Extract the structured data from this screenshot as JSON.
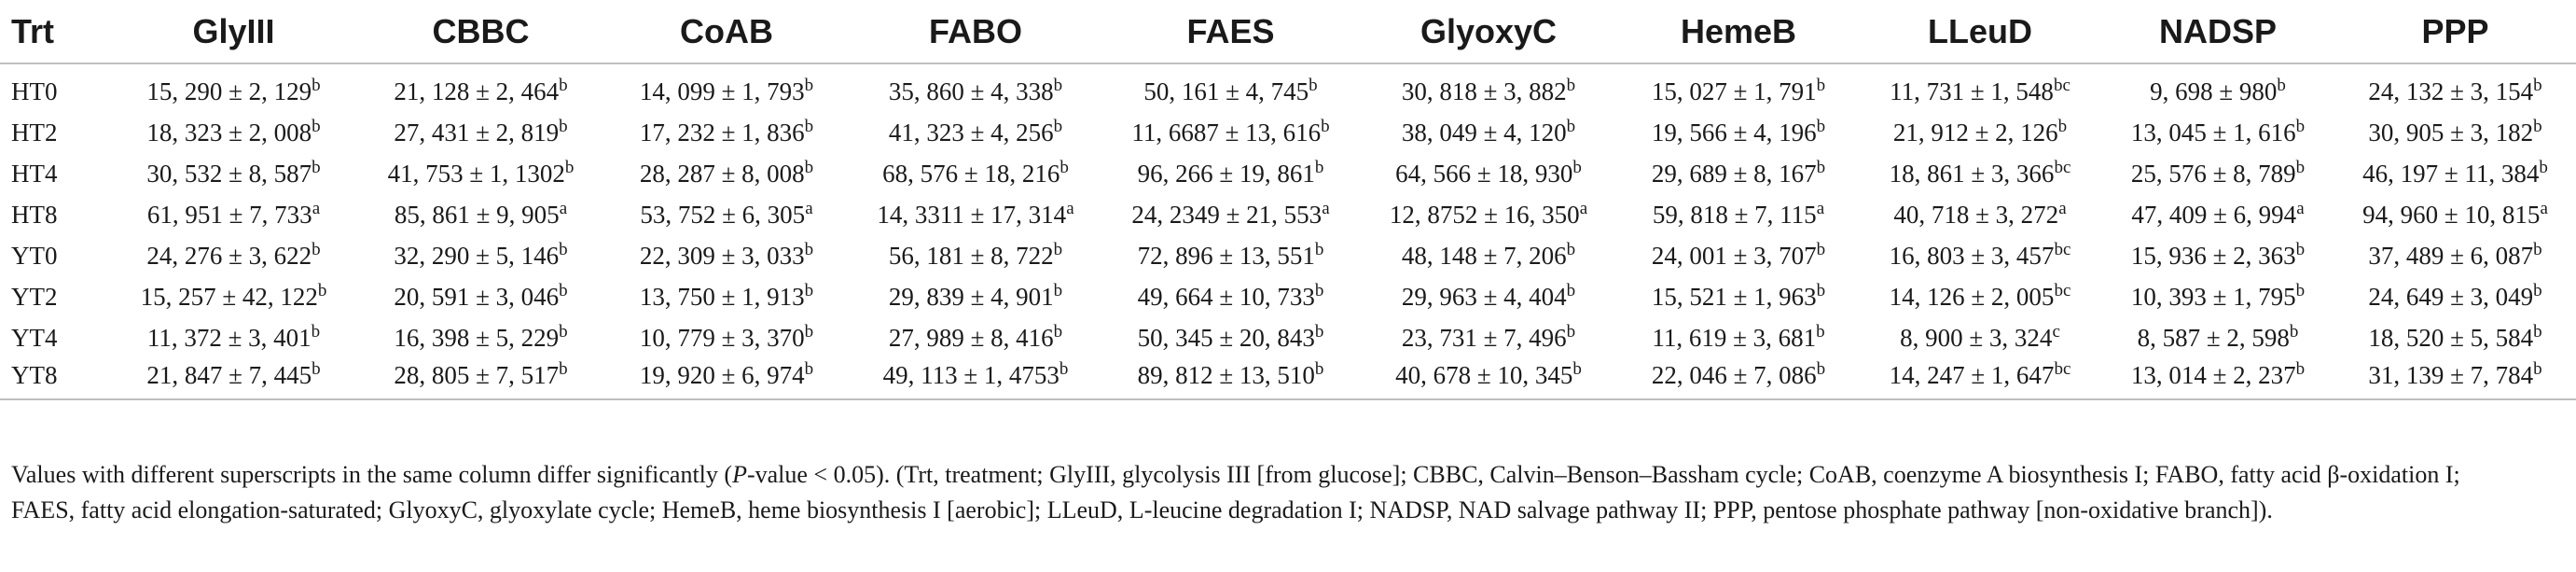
{
  "table": {
    "columns": [
      "Trt",
      "GlyIII",
      "CBBC",
      "CoAB",
      "FABO",
      "FAES",
      "GlyoxyC",
      "HemeB",
      "LLeuD",
      "NADSP",
      "PPP"
    ],
    "rows": [
      {
        "trt": "HT0",
        "cells": [
          {
            "v": "15, 290 ± 2, 129",
            "s": "b"
          },
          {
            "v": "21, 128 ± 2, 464",
            "s": "b"
          },
          {
            "v": "14, 099 ± 1, 793",
            "s": "b"
          },
          {
            "v": "35, 860 ± 4, 338",
            "s": "b"
          },
          {
            "v": "50, 161 ± 4, 745",
            "s": "b"
          },
          {
            "v": "30, 818 ± 3, 882",
            "s": "b"
          },
          {
            "v": "15, 027 ± 1, 791",
            "s": "b"
          },
          {
            "v": "11, 731 ± 1, 548",
            "s": "bc"
          },
          {
            "v": "9, 698 ± 980",
            "s": "b"
          },
          {
            "v": "24, 132 ± 3, 154",
            "s": "b"
          }
        ]
      },
      {
        "trt": "HT2",
        "cells": [
          {
            "v": "18, 323 ± 2, 008",
            "s": "b"
          },
          {
            "v": "27, 431 ± 2, 819",
            "s": "b"
          },
          {
            "v": "17, 232 ± 1, 836",
            "s": "b"
          },
          {
            "v": "41, 323 ± 4, 256",
            "s": "b"
          },
          {
            "v": "11, 6687 ± 13, 616",
            "s": "b"
          },
          {
            "v": "38, 049 ± 4, 120",
            "s": "b"
          },
          {
            "v": "19, 566 ± 4, 196",
            "s": "b"
          },
          {
            "v": "21, 912 ± 2, 126",
            "s": "b"
          },
          {
            "v": "13, 045 ± 1, 616",
            "s": "b"
          },
          {
            "v": "30, 905 ± 3, 182",
            "s": "b"
          }
        ]
      },
      {
        "trt": "HT4",
        "cells": [
          {
            "v": "30, 532 ± 8, 587",
            "s": "b"
          },
          {
            "v": "41, 753 ± 1, 1302",
            "s": "b"
          },
          {
            "v": "28, 287 ± 8, 008",
            "s": "b"
          },
          {
            "v": "68, 576 ± 18, 216",
            "s": "b"
          },
          {
            "v": "96, 266 ± 19, 861",
            "s": "b"
          },
          {
            "v": "64, 566 ± 18, 930",
            "s": "b"
          },
          {
            "v": "29, 689 ± 8, 167",
            "s": "b"
          },
          {
            "v": "18, 861 ± 3, 366",
            "s": "bc"
          },
          {
            "v": "25, 576 ± 8, 789",
            "s": "b"
          },
          {
            "v": "46, 197 ± 11, 384",
            "s": "b"
          }
        ]
      },
      {
        "trt": "HT8",
        "cells": [
          {
            "v": "61, 951 ± 7, 733",
            "s": "a"
          },
          {
            "v": "85, 861 ± 9, 905",
            "s": "a"
          },
          {
            "v": "53, 752 ± 6, 305",
            "s": "a"
          },
          {
            "v": "14, 3311 ± 17, 314",
            "s": "a"
          },
          {
            "v": "24, 2349 ± 21, 553",
            "s": "a"
          },
          {
            "v": "12, 8752 ± 16, 350",
            "s": "a"
          },
          {
            "v": "59, 818 ± 7, 115",
            "s": "a"
          },
          {
            "v": "40, 718 ± 3, 272",
            "s": "a"
          },
          {
            "v": "47, 409 ± 6, 994",
            "s": "a"
          },
          {
            "v": "94, 960 ± 10, 815",
            "s": "a"
          }
        ]
      },
      {
        "trt": "YT0",
        "cells": [
          {
            "v": "24, 276 ± 3, 622",
            "s": "b"
          },
          {
            "v": "32, 290 ± 5, 146",
            "s": "b"
          },
          {
            "v": "22, 309 ± 3, 033",
            "s": "b"
          },
          {
            "v": "56, 181 ± 8, 722",
            "s": "b"
          },
          {
            "v": "72, 896 ± 13, 551",
            "s": "b"
          },
          {
            "v": "48, 148 ± 7, 206",
            "s": "b"
          },
          {
            "v": "24, 001 ± 3, 707",
            "s": "b"
          },
          {
            "v": "16, 803 ± 3, 457",
            "s": "bc"
          },
          {
            "v": "15, 936 ± 2, 363",
            "s": "b"
          },
          {
            "v": "37, 489 ± 6, 087",
            "s": "b"
          }
        ]
      },
      {
        "trt": "YT2",
        "cells": [
          {
            "v": "15, 257 ± 42, 122",
            "s": "b"
          },
          {
            "v": "20, 591 ± 3, 046",
            "s": "b"
          },
          {
            "v": "13, 750 ± 1, 913",
            "s": "b"
          },
          {
            "v": "29, 839 ± 4, 901",
            "s": "b"
          },
          {
            "v": "49, 664 ± 10, 733",
            "s": "b"
          },
          {
            "v": "29, 963 ± 4, 404",
            "s": "b"
          },
          {
            "v": "15, 521 ± 1, 963",
            "s": "b"
          },
          {
            "v": "14, 126 ± 2, 005",
            "s": "bc"
          },
          {
            "v": "10, 393 ± 1, 795",
            "s": "b"
          },
          {
            "v": "24, 649 ± 3, 049",
            "s": "b"
          }
        ]
      },
      {
        "trt": "YT4",
        "cells": [
          {
            "v": "11, 372 ± 3, 401",
            "s": "b"
          },
          {
            "v": "16, 398 ± 5, 229",
            "s": "b"
          },
          {
            "v": "10, 779 ± 3, 370",
            "s": "b"
          },
          {
            "v": "27, 989 ± 8, 416",
            "s": "b"
          },
          {
            "v": "50, 345 ± 20, 843",
            "s": "b"
          },
          {
            "v": "23, 731 ± 7, 496",
            "s": "b"
          },
          {
            "v": "11, 619 ± 3, 681",
            "s": "b"
          },
          {
            "v": "8, 900 ± 3, 324",
            "s": "c"
          },
          {
            "v": "8, 587 ± 2, 598",
            "s": "b"
          },
          {
            "v": "18, 520 ± 5, 584",
            "s": "b"
          }
        ]
      },
      {
        "trt": "YT8",
        "cells": [
          {
            "v": "21, 847 ± 7, 445",
            "s": "b"
          },
          {
            "v": "28, 805 ± 7, 517",
            "s": "b"
          },
          {
            "v": "19, 920 ± 6, 974",
            "s": "b"
          },
          {
            "v": "49, 113 ± 1, 4753",
            "s": "b"
          },
          {
            "v": "89, 812 ± 13, 510",
            "s": "b"
          },
          {
            "v": "40, 678 ± 10, 345",
            "s": "b"
          },
          {
            "v": "22, 046 ± 7, 086",
            "s": "b"
          },
          {
            "v": "14, 247 ± 1, 647",
            "s": "bc"
          },
          {
            "v": "13, 014 ± 2, 237",
            "s": "b"
          },
          {
            "v": "31, 139 ± 7, 784",
            "s": "b"
          }
        ]
      }
    ]
  },
  "footnote": {
    "part1": "Values with different superscripts in the same column differ significantly (",
    "pvalue_italic": "P",
    "part2": "-value < 0.05). (Trt, treatment; GlyIII, glycolysis III [from glucose]; CBBC, Calvin–Benson–Bassham cycle; CoAB, coenzyme A biosynthesis I; FABO, fatty acid β-oxidation I;",
    "line2": "FAES, fatty acid elongation-saturated; GlyoxyC, glyoxylate cycle; HemeB, heme biosynthesis I [aerobic]; LLeuD, L-leucine degradation I; NADSP, NAD salvage pathway II; PPP, pentose phosphate pathway [non-oxidative branch])."
  }
}
